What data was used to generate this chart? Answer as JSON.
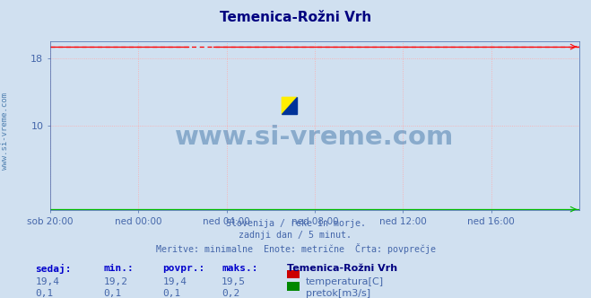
{
  "title": "Temenica-Rožni Vrh",
  "title_color": "#000080",
  "background_color": "#d0e0f0",
  "plot_bg_color": "#d0e0f0",
  "grid_color": "#ffaaaa",
  "x_tick_labels": [
    "sob 20:00",
    "ned 00:00",
    "ned 04:00",
    "ned 08:00",
    "ned 12:00",
    "ned 16:00"
  ],
  "x_tick_positions": [
    0,
    48,
    96,
    144,
    192,
    240
  ],
  "total_points": 289,
  "ylim": [
    0,
    20
  ],
  "yticks": [
    10,
    18
  ],
  "temp_value": 19.4,
  "temp_color": "#ff0000",
  "flow_value": 0.1,
  "flow_color": "#00bb00",
  "watermark_color": "#5080b0",
  "watermark_text": "www.si-vreme.com",
  "side_text": "www.si-vreme.com",
  "subtitle_lines": [
    "Slovenija / reke in morje.",
    "zadnji dan / 5 minut.",
    "Meritve: minimalne  Enote: metrične  Črta: povprečje"
  ],
  "legend_title": "Temenica-Rožni Vrh",
  "legend_items": [
    {
      "label": "temperatura[C]",
      "color": "#cc0000"
    },
    {
      "label": "pretok[m3/s]",
      "color": "#008800"
    }
  ],
  "table_headers": [
    "sedaj:",
    "min.:",
    "povpr.:",
    "maks.:"
  ],
  "table_row1": [
    "19,4",
    "19,2",
    "19,4",
    "19,5"
  ],
  "table_row2": [
    "0,1",
    "0,1",
    "0,1",
    "0,2"
  ],
  "tick_label_color": "#4466aa",
  "subtitle_color": "#4466aa",
  "table_header_color": "#0000cc",
  "table_value_color": "#4466aa"
}
